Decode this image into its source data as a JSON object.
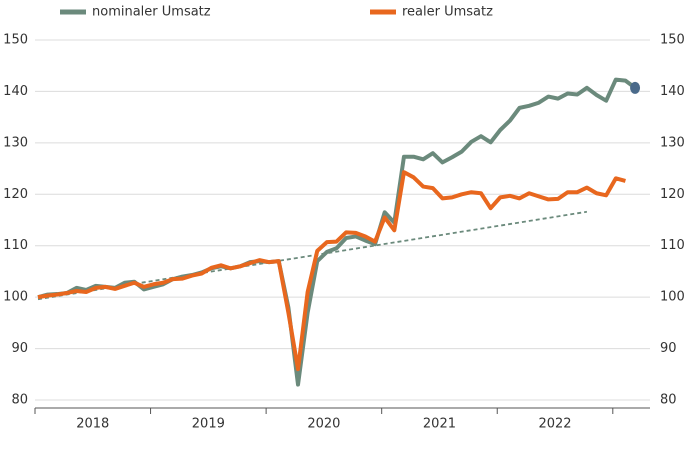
{
  "chart_data": {
    "type": "line",
    "categories": [
      null,
      null,
      null,
      null,
      null,
      null,
      null,
      null,
      null,
      null,
      null,
      null,
      null,
      null,
      null,
      null,
      null,
      null,
      null,
      null,
      null,
      null,
      null,
      null,
      null,
      null,
      null,
      null,
      null,
      null,
      null,
      null,
      null,
      null,
      null,
      null,
      null,
      null,
      null,
      null,
      null,
      null,
      null,
      null,
      null,
      null,
      null,
      null,
      null,
      null,
      null,
      null,
      null,
      null,
      null,
      null,
      null,
      null,
      null,
      null,
      null,
      null,
      null
    ],
    "year_labels": [
      "2018",
      "2019",
      "2020",
      "2021",
      "2022"
    ],
    "series": [
      {
        "name": "nominaler Umsatz",
        "color": "#6b8a7c",
        "values": [
          100,
          100.5,
          100.6,
          100.8,
          101.8,
          101.4,
          102.2,
          102,
          101.8,
          102.8,
          103,
          101.5,
          102,
          102.5,
          103.5,
          104,
          104.3,
          104.8,
          105.6,
          106,
          105.6,
          106,
          106.8,
          107,
          106.8,
          107,
          98,
          83,
          97,
          107,
          108.8,
          109.5,
          111.5,
          111.8,
          111,
          110.3,
          116.5,
          114.5,
          127.3,
          127.3,
          126.8,
          128,
          126.2,
          127.2,
          128.3,
          130.2,
          131.3,
          130.1,
          132.5,
          134.3,
          136.8,
          137.2,
          137.8,
          139,
          138.6,
          139.6,
          139.4,
          140.7,
          139.3,
          138.2,
          142.3,
          142.1,
          140.7
        ]
      },
      {
        "name": "realer Umsatz",
        "color": "#e8671e",
        "values": [
          100,
          100.3,
          100.5,
          100.8,
          101.2,
          101,
          101.8,
          102,
          101.6,
          102.2,
          102.8,
          102,
          102.5,
          102.8,
          103.5,
          103.6,
          104.2,
          104.6,
          105.7,
          106.2,
          105.6,
          106,
          106.6,
          107.2,
          106.8,
          107,
          97,
          86,
          101,
          109,
          110.7,
          110.8,
          112.6,
          112.5,
          111.8,
          110.8,
          115.5,
          113,
          124.3,
          123.3,
          121.5,
          121.2,
          119.2,
          119.4,
          120,
          120.4,
          120.2,
          117.3,
          119.4,
          119.7,
          119.2,
          120.2,
          119.6,
          119,
          119.1,
          120.4,
          120.4,
          121.3,
          120.2,
          119.8,
          123.1,
          122.6,
          null
        ]
      }
    ],
    "trend": {
      "color": "#6b8a7c",
      "x": [
        0,
        57
      ],
      "values": [
        99.6,
        116.6
      ]
    },
    "end_marker_color": "#4a6a8a",
    "ylim": [
      80,
      150
    ],
    "yticks": [
      80,
      90,
      100,
      110,
      120,
      130,
      140,
      150
    ],
    "grid": true
  }
}
